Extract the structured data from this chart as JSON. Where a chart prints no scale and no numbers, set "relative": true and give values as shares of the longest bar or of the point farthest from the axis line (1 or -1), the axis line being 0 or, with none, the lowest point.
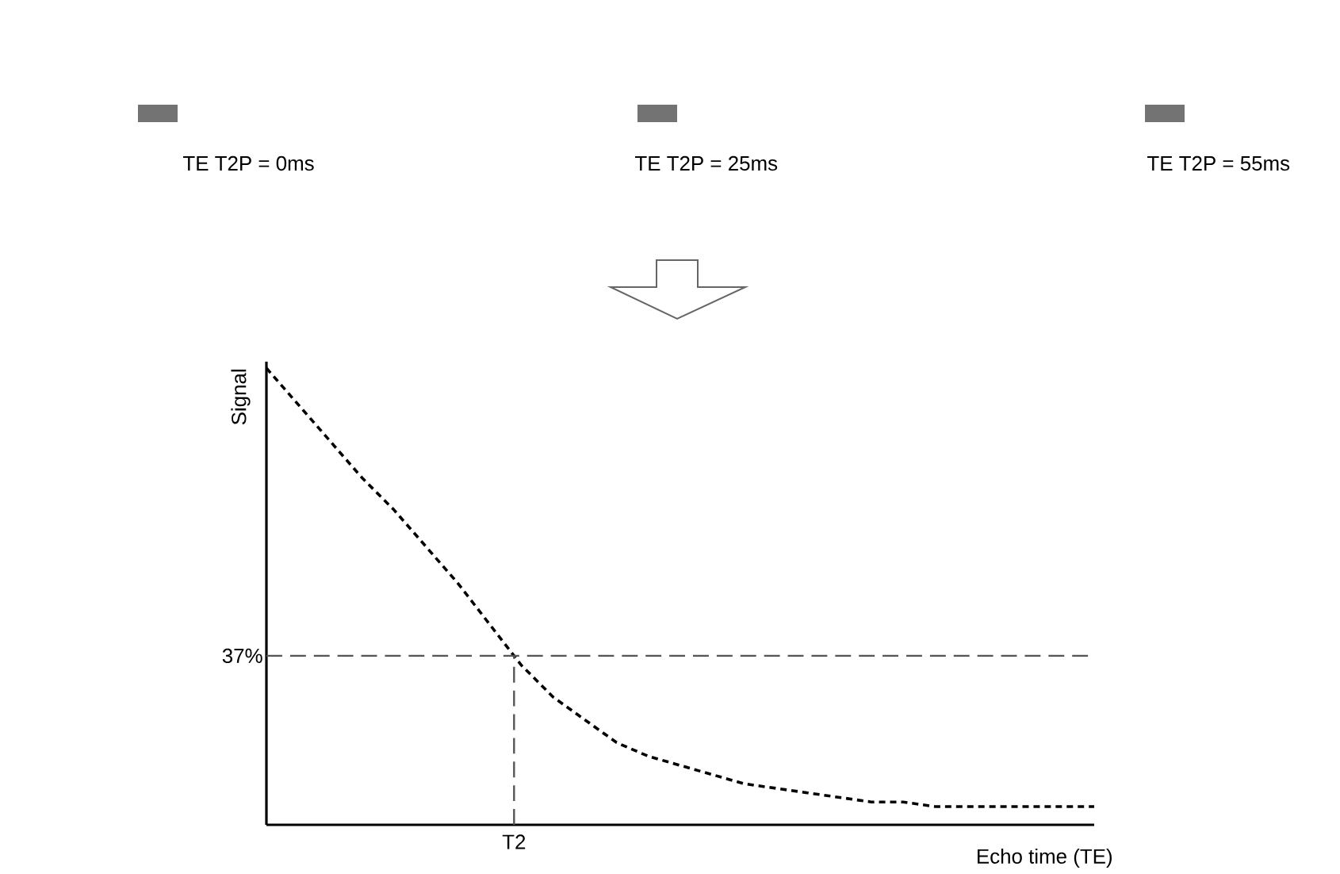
{
  "chart_data": {
    "type": "line",
    "relative": true,
    "xlabel": "Echo time  (TE)",
    "ylabel": "Signal",
    "categories": [
      null,
      null,
      null,
      null,
      null,
      null,
      null,
      null,
      null,
      null,
      null,
      null,
      null,
      null,
      null,
      null,
      null,
      null,
      null,
      null,
      null,
      null,
      null,
      null,
      null,
      null,
      null
    ],
    "series": [
      {
        "color": "#000000",
        "values": [
          1.0,
          0.92,
          0.84,
          0.76,
          0.69,
          0.61,
          0.53,
          0.44,
          0.35,
          0.28,
          0.23,
          0.18,
          0.15,
          0.13,
          0.11,
          0.09,
          0.08,
          0.07,
          0.06,
          0.05,
          0.05,
          0.04,
          0.04,
          0.04,
          0.04,
          0.04,
          0.04
        ]
      }
    ],
    "line_style": "dashed",
    "ref_lines": [
      {
        "axis": "y",
        "value": 0.37,
        "label": "37%",
        "color": "#555555",
        "line_style": "dashed"
      }
    ],
    "annotations": [
      "TE T2P = 0ms",
      "TE T2P = 25ms",
      "TE T2P = 55ms",
      "T2"
    ]
  }
}
